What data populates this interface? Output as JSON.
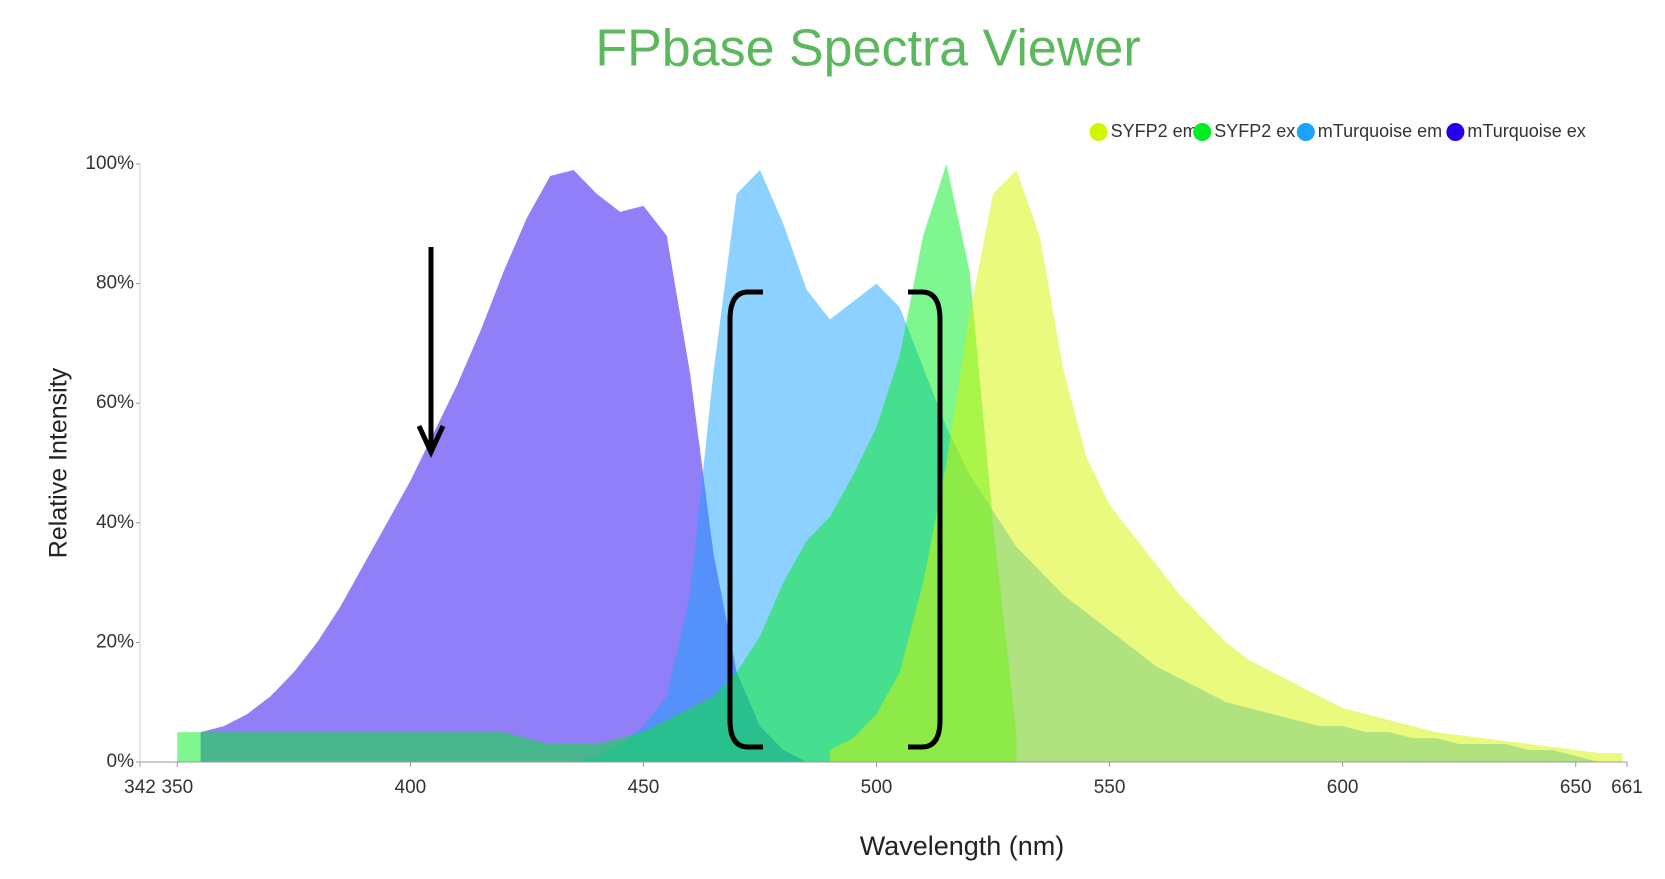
{
  "chart_data": {
    "type": "area",
    "title": "FPbase Spectra Viewer",
    "xlabel": "Wavelength (nm)",
    "ylabel": "Relative Intensity",
    "legend": "top-right",
    "xlim": [
      342,
      661
    ],
    "xticks": [
      342,
      350,
      400,
      450,
      500,
      550,
      600,
      650,
      661
    ],
    "ylim": [
      0,
      100
    ],
    "yticks": [
      {
        "value": 0,
        "label": "0%"
      },
      {
        "value": 20,
        "label": "20%"
      },
      {
        "value": 40,
        "label": "40%"
      },
      {
        "value": 60,
        "label": "60%"
      },
      {
        "value": 80,
        "label": "80%"
      },
      {
        "value": 100,
        "label": "100%"
      }
    ],
    "x": [
      345,
      350,
      355,
      360,
      365,
      370,
      375,
      380,
      385,
      390,
      395,
      400,
      405,
      410,
      415,
      420,
      425,
      430,
      435,
      440,
      445,
      450,
      455,
      460,
      465,
      470,
      475,
      480,
      485,
      490,
      495,
      500,
      505,
      510,
      515,
      520,
      525,
      530,
      535,
      540,
      545,
      550,
      555,
      560,
      565,
      570,
      575,
      580,
      585,
      590,
      595,
      600,
      605,
      610,
      615,
      620,
      625,
      630,
      635,
      640,
      645,
      650,
      655,
      660
    ],
    "series": [
      {
        "name": "SYFP2 em",
        "color": "#d4f500",
        "values": [
          null,
          null,
          null,
          null,
          null,
          null,
          null,
          null,
          null,
          null,
          null,
          null,
          null,
          null,
          null,
          null,
          null,
          null,
          null,
          null,
          null,
          null,
          null,
          null,
          null,
          null,
          null,
          null,
          null,
          2,
          4,
          8,
          15,
          30,
          50,
          75,
          95,
          99,
          88,
          66,
          51,
          43,
          38,
          33,
          28,
          24,
          20,
          17,
          15,
          13,
          11,
          9,
          8,
          7,
          6,
          5,
          4.5,
          4,
          3.5,
          3,
          2.5,
          2,
          1.5,
          1.5
        ]
      },
      {
        "name": "SYFP2 ex",
        "color": "#00ee22",
        "values": [
          null,
          5,
          5,
          5,
          5,
          5,
          5,
          5,
          5,
          5,
          5,
          5,
          5,
          5,
          5,
          5,
          4,
          3,
          3,
          3,
          4,
          5,
          7,
          9,
          11,
          15,
          21,
          30,
          37,
          41,
          48,
          56,
          68,
          88,
          100,
          82,
          40,
          5,
          null,
          null,
          null,
          null,
          null,
          null,
          null,
          null,
          null,
          null,
          null,
          null,
          null,
          null,
          null,
          null,
          null,
          null,
          null,
          null,
          null,
          null,
          null,
          null,
          null,
          null
        ]
      },
      {
        "name": "mTurquoise em",
        "color": "#1aa3ff",
        "values": [
          null,
          null,
          null,
          null,
          null,
          null,
          null,
          null,
          null,
          null,
          null,
          null,
          null,
          null,
          null,
          null,
          null,
          null,
          0,
          1,
          3,
          6,
          11,
          28,
          65,
          95,
          99,
          90,
          79,
          74,
          77,
          80,
          76,
          66,
          56,
          48,
          42,
          36,
          32,
          28,
          25,
          22,
          19,
          16,
          14,
          12,
          10,
          9,
          8,
          7,
          6,
          6,
          5,
          5,
          4,
          4,
          3,
          3,
          3,
          2,
          2,
          1,
          0,
          null
        ]
      },
      {
        "name": "mTurquoise ex",
        "color": "#2200ee",
        "values": [
          null,
          null,
          5,
          6,
          8,
          11,
          15,
          20,
          26,
          33,
          40,
          47,
          55,
          63,
          72,
          82,
          91,
          98,
          99,
          95,
          92,
          93,
          88,
          65,
          35,
          15,
          6,
          2,
          0,
          null,
          null,
          null,
          null,
          null,
          null,
          null,
          null,
          null,
          null,
          null,
          null,
          null,
          null,
          null,
          null,
          null,
          null,
          null,
          null,
          null,
          null,
          null,
          null,
          null,
          null,
          null,
          null,
          null,
          null,
          null,
          null,
          null,
          null,
          null
        ]
      }
    ]
  }
}
